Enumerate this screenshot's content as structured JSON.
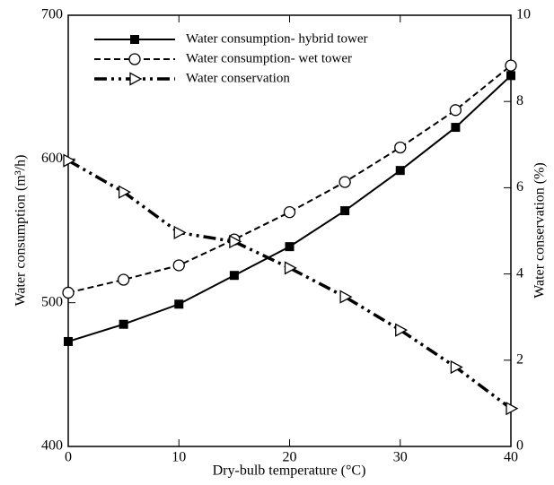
{
  "chart_data": {
    "type": "line",
    "xlabel": "Dry-bulb temperature (°C)",
    "ylabel": "Water consumption (m³/h)",
    "y2label": "Water conservation (%)",
    "x": [
      0,
      5,
      10,
      15,
      20,
      25,
      30,
      35,
      40
    ],
    "xlim": [
      0,
      40
    ],
    "xticks": [
      0,
      10,
      20,
      30,
      40
    ],
    "ylim": [
      400,
      700
    ],
    "yticks": [
      400,
      500,
      600,
      700
    ],
    "y2lim": [
      0,
      10
    ],
    "y2ticks": [
      0,
      2,
      4,
      6,
      8,
      10
    ],
    "legend": "upper left",
    "series": [
      {
        "name": "Water consumption- hybrid tower",
        "color": "#000000",
        "dash": "solid",
        "marker": "square",
        "values": [
          473,
          485,
          499,
          519,
          539,
          564,
          592,
          622,
          658
        ]
      },
      {
        "name": "Water consumption- wet tower",
        "color": "#000000",
        "dash": "dashed",
        "marker": "circle",
        "values": [
          507,
          516,
          526,
          544,
          563,
          584,
          608,
          634,
          665
        ]
      },
      {
        "name": "Water conservation",
        "color": "#000000",
        "dash": "dashdotdot",
        "marker": "triangle-right",
        "axis": "y2",
        "values": [
          6.63,
          5.9,
          4.96,
          4.75,
          4.14,
          3.47,
          2.7,
          1.84,
          0.88
        ]
      }
    ]
  }
}
